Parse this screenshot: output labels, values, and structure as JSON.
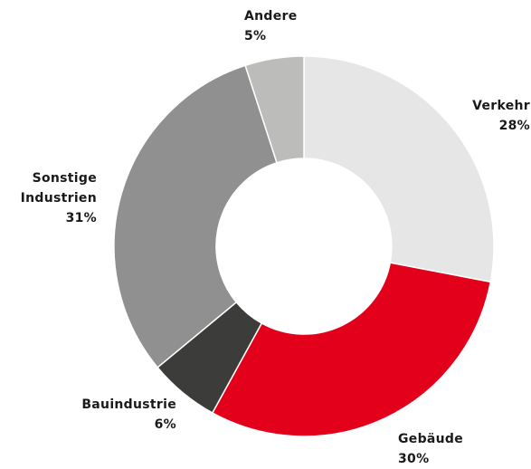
{
  "chart_data": {
    "type": "donut",
    "categories": [
      "Verkehr",
      "Gebäude",
      "Bauindustrie",
      "Sonstige Industrien",
      "Andere"
    ],
    "values": [
      28,
      30,
      6,
      31,
      5
    ],
    "value_labels": [
      "28%",
      "30%",
      "6%",
      "31%",
      "5%"
    ],
    "colors": [
      "#e6e6e6",
      "#e2001a",
      "#3c3c3a",
      "#909090",
      "#bcbcbb"
    ]
  }
}
